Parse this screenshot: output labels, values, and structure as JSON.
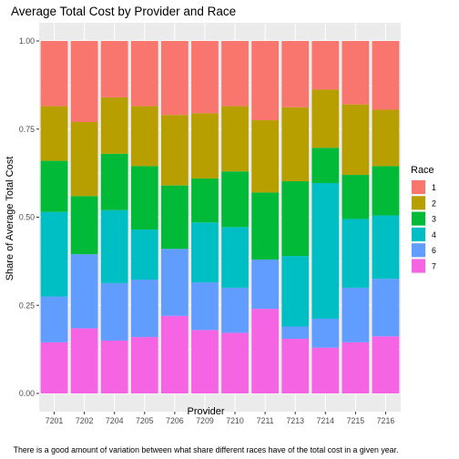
{
  "chart_data": {
    "type": "bar",
    "stacked": true,
    "title": "Average Total Cost by Provider and Race",
    "xlabel": "Provider",
    "ylabel": "Share of Average Total Cost",
    "ylim": [
      0,
      1
    ],
    "yticks": [
      "0.00",
      "0.25",
      "0.50",
      "0.75",
      "1.00"
    ],
    "ytick_values": [
      0,
      0.25,
      0.5,
      0.75,
      1.0
    ],
    "grid": true,
    "legend_position": "right",
    "legend_title": "Race",
    "categories": [
      "7201",
      "7202",
      "7204",
      "7205",
      "7206",
      "7209",
      "7210",
      "7211",
      "7213",
      "7214",
      "7215",
      "7216"
    ],
    "series": [
      {
        "name": "7",
        "color": "#F564E3",
        "values": [
          0.145,
          0.185,
          0.15,
          0.16,
          0.22,
          0.18,
          0.172,
          0.24,
          0.155,
          0.13,
          0.145,
          0.162
        ]
      },
      {
        "name": "6",
        "color": "#619CFF",
        "values": [
          0.13,
          0.21,
          0.163,
          0.163,
          0.19,
          0.135,
          0.128,
          0.14,
          0.035,
          0.082,
          0.155,
          0.163
        ]
      },
      {
        "name": "4",
        "color": "#00BFC4",
        "values": [
          0.24,
          0.0,
          0.207,
          0.142,
          0.0,
          0.17,
          0.172,
          0.0,
          0.2,
          0.385,
          0.195,
          0.18
        ]
      },
      {
        "name": "3",
        "color": "#00BA38",
        "values": [
          0.145,
          0.165,
          0.16,
          0.18,
          0.18,
          0.125,
          0.158,
          0.19,
          0.212,
          0.1,
          0.125,
          0.14
        ]
      },
      {
        "name": "2",
        "color": "#B79F00",
        "values": [
          0.155,
          0.21,
          0.16,
          0.17,
          0.2,
          0.185,
          0.185,
          0.205,
          0.21,
          0.165,
          0.2,
          0.16
        ]
      },
      {
        "name": "1",
        "color": "#F8766D",
        "values": [
          0.185,
          0.23,
          0.16,
          0.185,
          0.21,
          0.205,
          0.185,
          0.225,
          0.188,
          0.138,
          0.18,
          0.195
        ]
      }
    ],
    "legend_order": [
      "1",
      "2",
      "3",
      "4",
      "6",
      "7"
    ],
    "caption": "There is a good amount of variation between what share different races have of the total cost in a given year.",
    "panel_background": "#EBEBEB",
    "grid_color": "#FFFFFF"
  }
}
